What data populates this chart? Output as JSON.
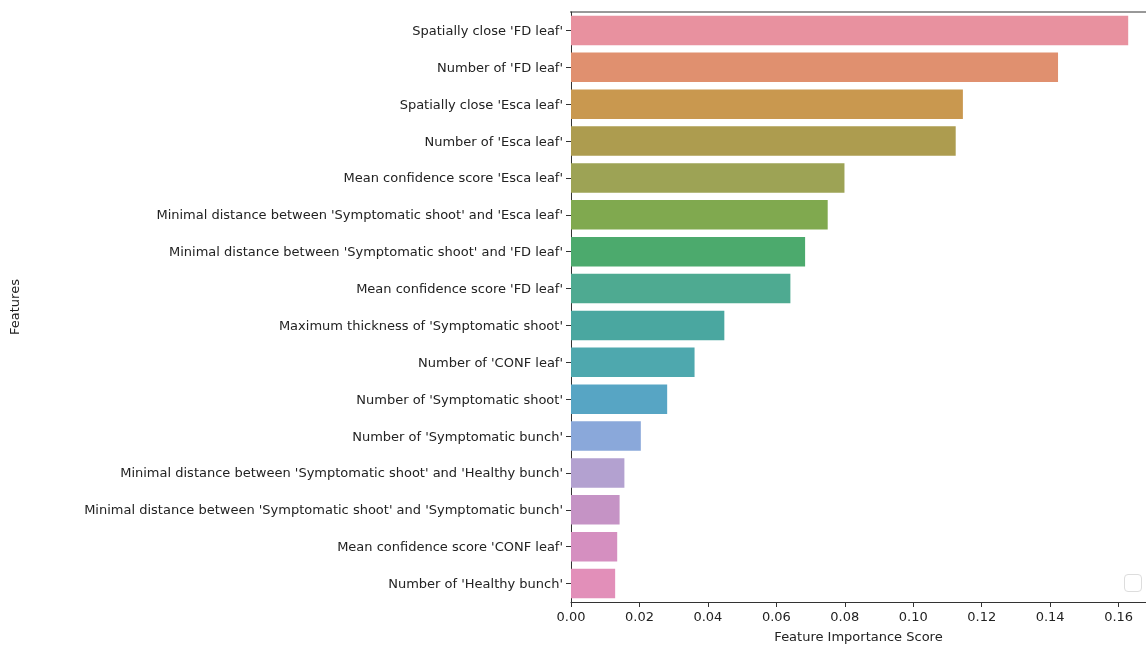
{
  "chart_data": {
    "type": "bar",
    "orientation": "horizontal",
    "xlabel": "Feature Importance Score",
    "ylabel": "Features",
    "categories": [
      "Spatially close 'FD leaf'",
      "Number of 'FD leaf'",
      "Spatially close 'Esca leaf'",
      "Number of 'Esca leaf'",
      "Mean confidence score 'Esca leaf'",
      "Minimal distance between 'Symptomatic shoot' and 'Esca leaf'",
      "Minimal distance between 'Symptomatic shoot' and 'FD leaf'",
      "Mean confidence score 'FD leaf'",
      "Maximum thickness of 'Symptomatic shoot'",
      "Number of 'CONF leaf'",
      "Number of 'Symptomatic shoot'",
      "Number of 'Symptomatic bunch'",
      "Minimal distance between 'Symptomatic shoot' and 'Healthy bunch'",
      "Minimal distance between 'Symptomatic shoot' and 'Symptomatic bunch'",
      "Mean confidence score 'CONF leaf'",
      "Number of 'Healthy bunch'"
    ],
    "values": [
      0.1628,
      0.1423,
      0.1145,
      0.1124,
      0.0799,
      0.075,
      0.0684,
      0.0641,
      0.0448,
      0.0361,
      0.0281,
      0.0204,
      0.0156,
      0.0142,
      0.0135,
      0.0129
    ],
    "colors": [
      "#e8919f",
      "#e0906f",
      "#c9984f",
      "#ad9c4f",
      "#9da355",
      "#80a94f",
      "#4caa6d",
      "#4eaa91",
      "#4aa7a0",
      "#4ea8ae",
      "#57a5c4",
      "#8aa8da",
      "#b3a1d0",
      "#c593c5",
      "#d58fc0",
      "#e28fb9"
    ],
    "xlim": [
      0,
      0.168
    ],
    "xticks": [
      {
        "value": 0,
        "label": "0.00"
      },
      {
        "value": 0.02,
        "label": "0.02"
      },
      {
        "value": 0.04,
        "label": "0.04"
      },
      {
        "value": 0.06,
        "label": "0.06"
      },
      {
        "value": 0.08,
        "label": "0.08"
      },
      {
        "value": 0.1,
        "label": "0.10"
      },
      {
        "value": 0.12,
        "label": "0.12"
      },
      {
        "value": 0.14,
        "label": "0.14"
      },
      {
        "value": 0.16,
        "label": "0.16"
      }
    ],
    "grid": false
  }
}
